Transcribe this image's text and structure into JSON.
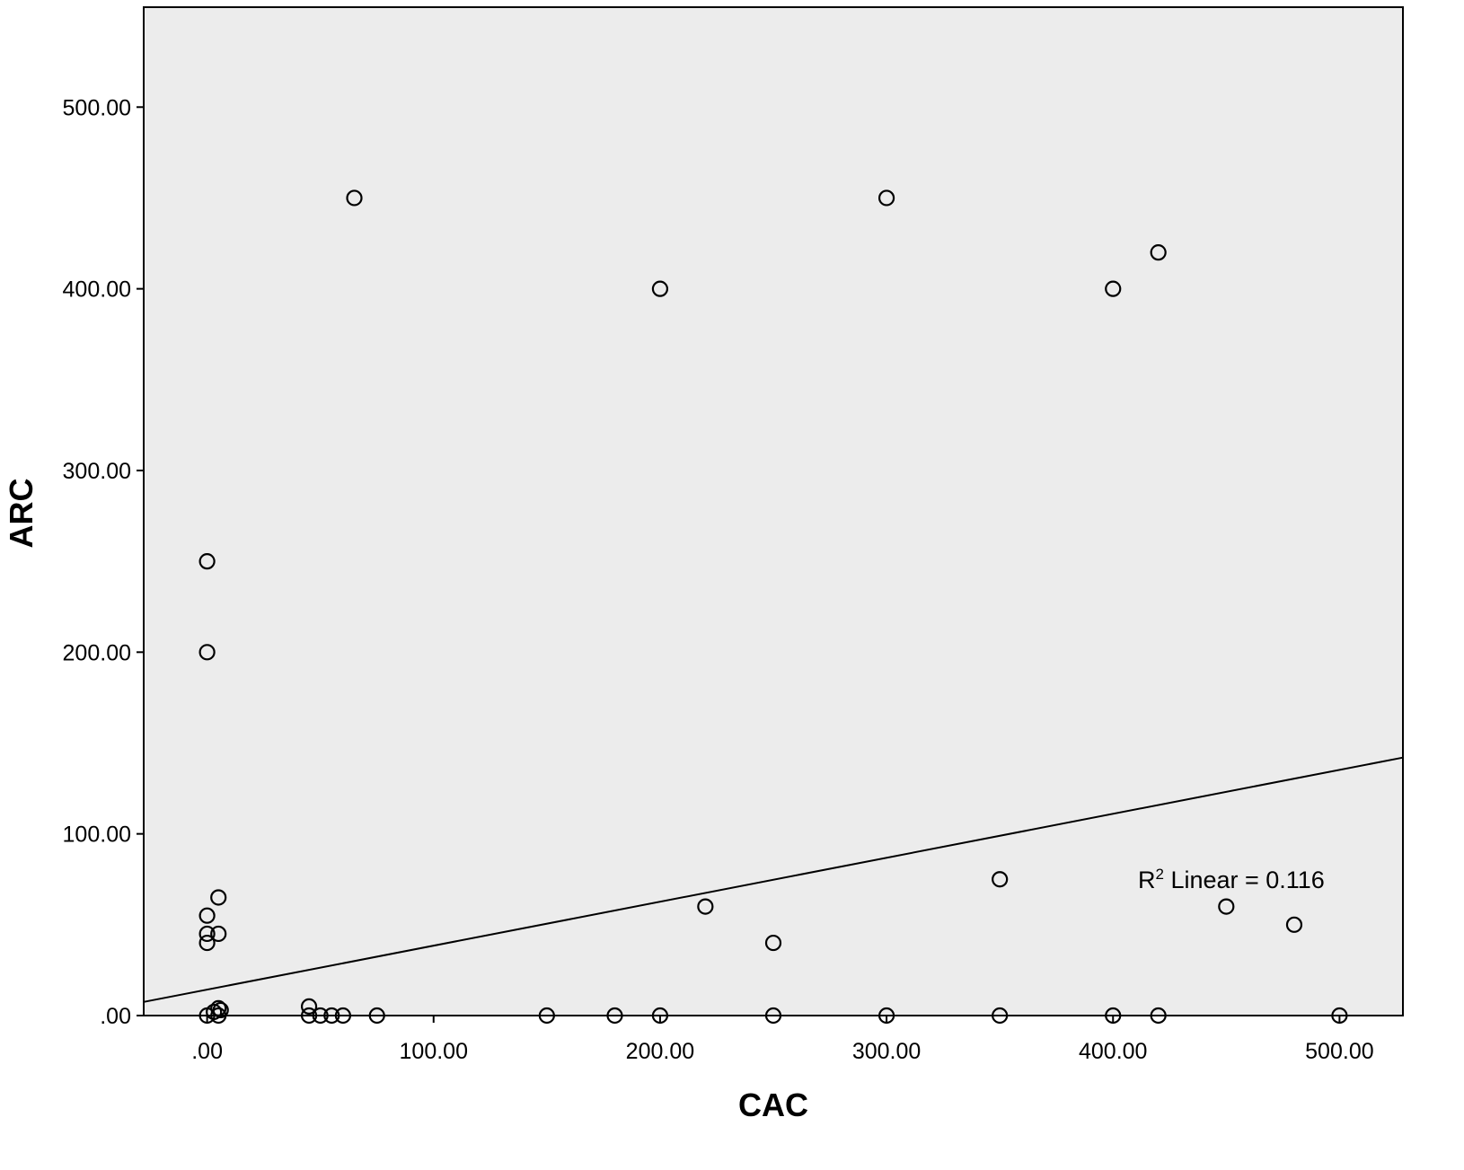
{
  "chart_data": {
    "type": "scatter",
    "title": "",
    "xlabel": "CAC",
    "ylabel": "ARC",
    "xlim": [
      -28,
      528
    ],
    "ylim": [
      0,
      555
    ],
    "x_ticks": [
      0,
      100,
      200,
      300,
      400,
      500
    ],
    "x_tick_labels": [
      ".00",
      "100.00",
      "200.00",
      "300.00",
      "400.00",
      "500.00"
    ],
    "y_ticks": [
      0,
      100,
      200,
      300,
      400,
      500
    ],
    "y_tick_labels": [
      ".00",
      "100.00",
      "200.00",
      "300.00",
      "400.00",
      "500.00"
    ],
    "grid": false,
    "plot_background": "#ececec",
    "marker_style": "hollow-circle",
    "points": [
      {
        "x": 65,
        "y": 450
      },
      {
        "x": 300,
        "y": 450
      },
      {
        "x": 200,
        "y": 400
      },
      {
        "x": 400,
        "y": 400
      },
      {
        "x": 420,
        "y": 420
      },
      {
        "x": 0,
        "y": 250
      },
      {
        "x": 0,
        "y": 200
      },
      {
        "x": 5,
        "y": 65
      },
      {
        "x": 0,
        "y": 55
      },
      {
        "x": 0,
        "y": 45
      },
      {
        "x": 0,
        "y": 40
      },
      {
        "x": 5,
        "y": 45
      },
      {
        "x": 220,
        "y": 60
      },
      {
        "x": 250,
        "y": 40
      },
      {
        "x": 350,
        "y": 75
      },
      {
        "x": 450,
        "y": 60
      },
      {
        "x": 480,
        "y": 50
      },
      {
        "x": 0,
        "y": 0
      },
      {
        "x": 3,
        "y": 2
      },
      {
        "x": 5,
        "y": 4
      },
      {
        "x": 6,
        "y": 3
      },
      {
        "x": 5,
        "y": 0
      },
      {
        "x": 45,
        "y": 5
      },
      {
        "x": 45,
        "y": 0
      },
      {
        "x": 50,
        "y": 0
      },
      {
        "x": 55,
        "y": 0
      },
      {
        "x": 60,
        "y": 0
      },
      {
        "x": 75,
        "y": 0
      },
      {
        "x": 150,
        "y": 0
      },
      {
        "x": 180,
        "y": 0
      },
      {
        "x": 200,
        "y": 0
      },
      {
        "x": 250,
        "y": 0
      },
      {
        "x": 300,
        "y": 0
      },
      {
        "x": 350,
        "y": 0
      },
      {
        "x": 400,
        "y": 0
      },
      {
        "x": 420,
        "y": 0
      },
      {
        "x": 500,
        "y": 0
      }
    ],
    "fit_line": {
      "type": "linear",
      "x": [
        -28,
        528
      ],
      "y": [
        7.5,
        142
      ]
    },
    "annotation": {
      "prefix": "R",
      "superscript": "2",
      "text": " Linear = 0.116",
      "x": 411,
      "y": 75
    }
  }
}
